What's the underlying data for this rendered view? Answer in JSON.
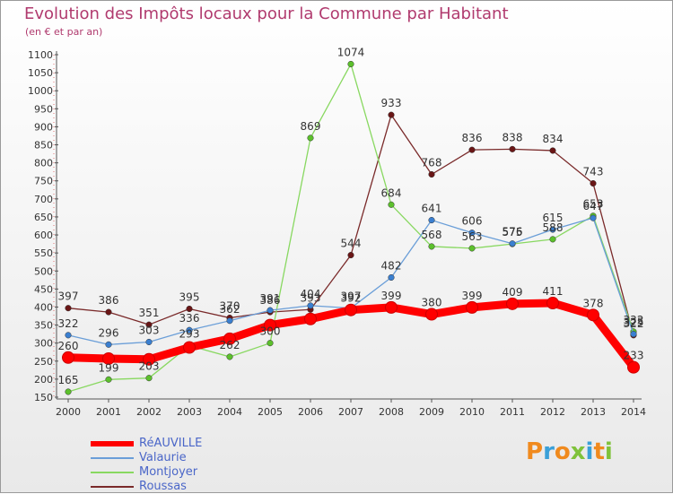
{
  "header": {
    "title": "Evolution des Impôts locaux pour la Commune par Habitant",
    "subtitle": "(en € et par an)"
  },
  "brand": {
    "logo_text": "Proxiti",
    "logo_colors": [
      "#f08a1e",
      "#3aa0d8",
      "#f08a1e",
      "#7fc23a",
      "#3aa0d8",
      "#f08a1e",
      "#7fc23a"
    ]
  },
  "chart_data": {
    "type": "line",
    "title": "Evolution des Impôts locaux pour la Commune par Habitant",
    "subtitle": "(en € et par an)",
    "categories": [
      "2000",
      "2001",
      "2002",
      "2003",
      "2004",
      "2005",
      "2006",
      "2007",
      "2008",
      "2009",
      "2010",
      "2011",
      "2012",
      "2013",
      "2014"
    ],
    "ylim": [
      150,
      1100
    ],
    "yticks": [
      150,
      200,
      250,
      300,
      350,
      400,
      450,
      500,
      550,
      600,
      650,
      700,
      750,
      800,
      850,
      900,
      950,
      1000,
      1050,
      1100
    ],
    "grid": false,
    "legend_position": "bottom-left",
    "series": [
      {
        "name": "RéAUVILLE",
        "color": "#ff0000",
        "marker_color": "#ff0000",
        "values": [
          260,
          257,
          255,
          288,
          312,
          350,
          367,
          392,
          399,
          380,
          399,
          409,
          411,
          378,
          233
        ],
        "labels": [
          260,
          null,
          null,
          null,
          null,
          null,
          null,
          392,
          399,
          380,
          399,
          409,
          411,
          378,
          233
        ]
      },
      {
        "name": "Valaurie",
        "color": "#6a9ed8",
        "marker_color": "#3a7fd0",
        "values": [
          322,
          296,
          303,
          336,
          362,
          391,
          404,
          397,
          482,
          641,
          606,
          576,
          615,
          647,
          325
        ],
        "labels": [
          322,
          296,
          303,
          336,
          362,
          391,
          404,
          397,
          482,
          641,
          606,
          576,
          615,
          647,
          325
        ]
      },
      {
        "name": "Montjoyer",
        "color": "#88d860",
        "marker_color": "#5cc02c",
        "values": [
          165,
          199,
          203,
          293,
          262,
          300,
          869,
          1074,
          684,
          568,
          563,
          575,
          588,
          653,
          332
        ],
        "labels": [
          165,
          199,
          203,
          293,
          262,
          300,
          869,
          1074,
          684,
          568,
          563,
          575,
          588,
          653,
          332
        ]
      },
      {
        "name": "Roussas",
        "color": "#7a2a2a",
        "marker_color": "#6a1616",
        "values": [
          397,
          386,
          351,
          395,
          370,
          386,
          393,
          544,
          933,
          768,
          836,
          838,
          834,
          743,
          322
        ],
        "labels": [
          397,
          386,
          351,
          395,
          370,
          386,
          393,
          544,
          933,
          768,
          836,
          838,
          834,
          743,
          322
        ]
      }
    ]
  }
}
